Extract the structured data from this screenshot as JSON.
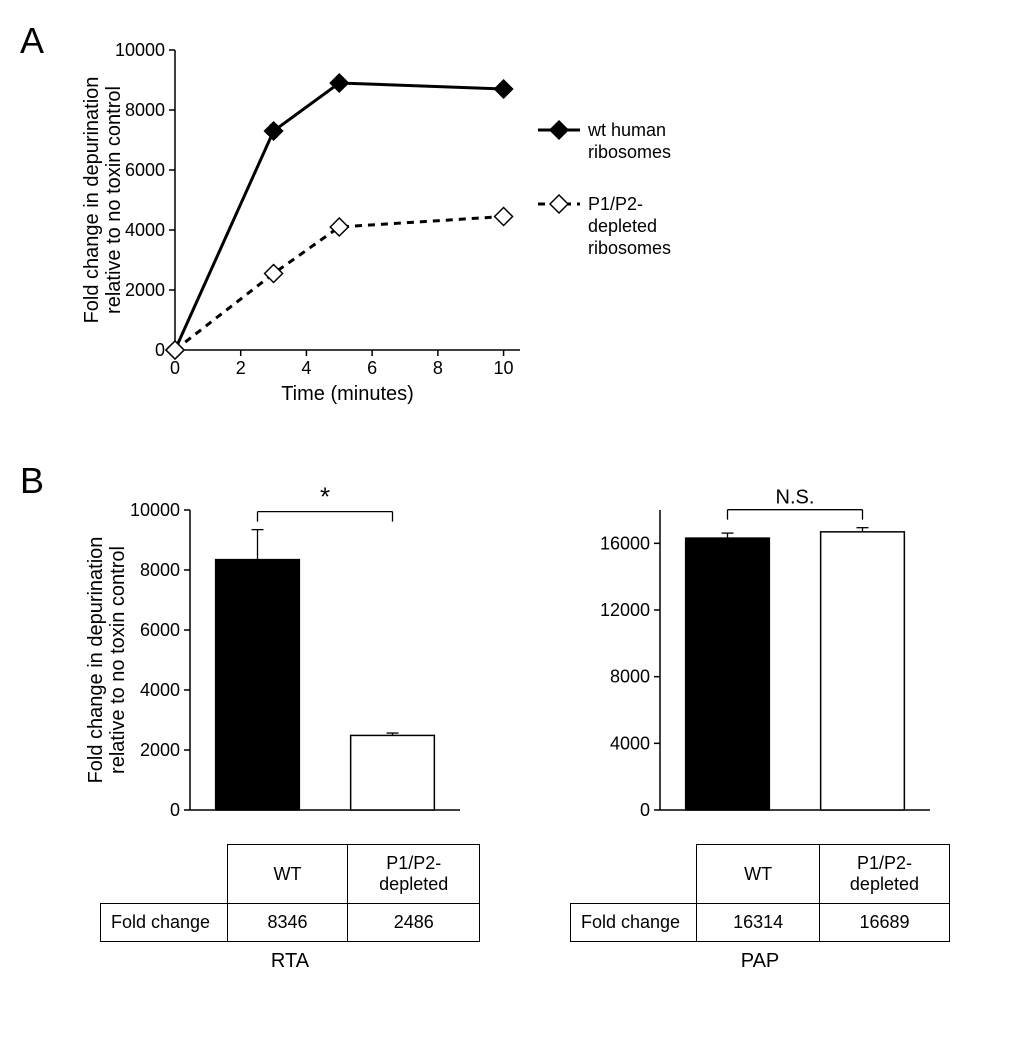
{
  "panelA": {
    "label": "A",
    "type": "line",
    "ylabel_line1": "Fold change in depurination",
    "ylabel_line2": "relative to no toxin control",
    "xlabel": "Time (minutes)",
    "ylim": [
      0,
      10000
    ],
    "ytick_step": 2000,
    "yticks": [
      0,
      2000,
      4000,
      6000,
      8000,
      10000
    ],
    "xlim": [
      0,
      10.5
    ],
    "xticks": [
      0,
      2,
      4,
      6,
      8,
      10
    ],
    "series": [
      {
        "name": "wt human ribosomes",
        "legend_lines": [
          "wt human",
          "ribosomes"
        ],
        "points": [
          [
            0,
            0
          ],
          [
            3,
            7300
          ],
          [
            5,
            8900
          ],
          [
            10,
            8700
          ]
        ],
        "err": [
          0,
          200,
          150,
          50
        ],
        "line_color": "#000000",
        "line_width": 3,
        "dash": "none",
        "marker_fill": "#000000",
        "marker_stroke": "#000000",
        "marker_size": 9
      },
      {
        "name": "P1/P2-depleted ribosomes",
        "legend_lines": [
          "P1/P2-",
          "depleted",
          "ribosomes"
        ],
        "points": [
          [
            0,
            0
          ],
          [
            3,
            2550
          ],
          [
            5,
            4100
          ],
          [
            10,
            4450
          ]
        ],
        "err": [
          0,
          100,
          100,
          60
        ],
        "line_color": "#000000",
        "line_width": 3,
        "dash": "7,6",
        "marker_fill": "#ffffff",
        "marker_stroke": "#000000",
        "marker_size": 9
      }
    ],
    "axis_color": "#000000",
    "grid": false,
    "tick_fontsize": 18,
    "label_fontsize": 20,
    "legend_fontsize": 18
  },
  "panelB": {
    "label": "B",
    "ylabel_line1": "Fold change in depurination",
    "ylabel_line2": "relative to no toxin control",
    "label_fontsize": 20,
    "tick_fontsize": 18,
    "axis_color": "#000000",
    "bar_border": "#000000",
    "subpanels": [
      {
        "treatment": "RTA",
        "sig_label": "*",
        "sig_fontsize": 26,
        "ylim": [
          0,
          10000
        ],
        "ytick_step": 2000,
        "yticks": [
          0,
          2000,
          4000,
          6000,
          8000,
          10000
        ],
        "categories": [
          "WT",
          "P1/P2-\ndepleted"
        ],
        "bars": [
          {
            "value": 8346,
            "err": 1000,
            "fill": "#000000"
          },
          {
            "value": 2486,
            "err": 80,
            "fill": "#ffffff"
          }
        ],
        "table_row_label": "Fold change",
        "table_values": [
          "8346",
          "2486"
        ]
      },
      {
        "treatment": "PAP",
        "sig_label": "N.S.",
        "sig_fontsize": 20,
        "ylim": [
          0,
          18000
        ],
        "ytick_step": 4000,
        "yticks": [
          0,
          4000,
          8000,
          12000,
          16000
        ],
        "categories": [
          "WT",
          "P1/P2-\ndepleted"
        ],
        "bars": [
          {
            "value": 16314,
            "err": 300,
            "fill": "#000000"
          },
          {
            "value": 16689,
            "err": 250,
            "fill": "#ffffff"
          }
        ],
        "table_row_label": "Fold change",
        "table_values": [
          "16314",
          "16689"
        ]
      }
    ]
  }
}
